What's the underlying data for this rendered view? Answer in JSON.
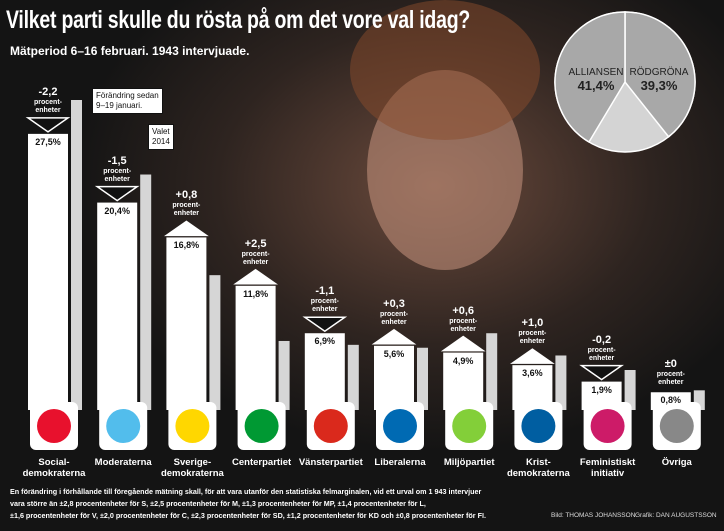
{
  "title": "Vilket parti skulle du rösta på om det vore val idag?",
  "subtitle": "Mätperiod 6–16 februari. 1943 intervjuade.",
  "callouts": {
    "change": "Förändring sedan\n9–19 januari."
  },
  "footnote": [
    "En förändring i förhållande till föregående mätning skall, för att vara utanför den statistiska felmarginalen, vid ett urval om 1 943 intervjuer",
    "vara större än ±2,8 procentenheter för S, ±2,5 procentenheter för M, ±1,3 procentenheter för MP, ±1,4 procentenheter för L,",
    "±1,6 procentenheter för V, ±2,0 procentenheter för C, ±2,3 procentenheter för SD, ±1,2 procentenheter för KD och ±0,8 procentenheter för FI."
  ],
  "credits": {
    "photo": "Bild: THOMAS JOHANSSON",
    "graphic": "Grafik: DAN AUGUSTSSON"
  },
  "chart_data": [
    {
      "type": "bar",
      "categories": [
        "Social-\ndemokraterna",
        "Moderaterna",
        "Sverige-\ndemokraterna",
        "Centerpartiet",
        "Vänsterpartiet",
        "Liberalerna",
        "Miljöpartiet",
        "Krist-\ndemokraterna",
        "Feministiskt\ninitiativ",
        "Övriga"
      ],
      "values": [
        27.5,
        20.4,
        16.8,
        11.8,
        6.9,
        5.6,
        4.9,
        3.6,
        1.9,
        0.8
      ],
      "value_labels": [
        "27,5%",
        "20,4%",
        "16,8%",
        "11,8%",
        "6,9%",
        "5,6%",
        "4,9%",
        "3,6%",
        "1,9%",
        "0,8%"
      ],
      "color": "#ffffff",
      "changes": {
        "values": [
          -2.2,
          -1.5,
          0.8,
          2.5,
          -1.1,
          0.3,
          0.6,
          1.0,
          -0.2,
          0
        ],
        "value_labels": [
          "-2,2",
          "-1,5",
          "+0,8",
          "+2,5",
          "-1,1",
          "+0,3",
          "+0,6",
          "+1,0",
          "-0,2",
          "±0"
        ],
        "unit": "procent-\nenheter"
      },
      "reference_series": {
        "name": "Valet\n2014",
        "color": "#d6d6d6",
        "values": [
          31.0,
          23.3,
          12.9,
          6.1,
          5.7,
          5.4,
          6.9,
          4.6,
          3.1,
          1.0
        ]
      },
      "logo_colors": [
        "#e8112d",
        "#52bdec",
        "#ffd700",
        "#009933",
        "#da291c",
        "#006ab3",
        "#83cf39",
        "#005ea1",
        "#cd1b68",
        "#888888"
      ]
    },
    {
      "type": "pie",
      "categories": [
        "ALLIANSEN",
        "RÖDGRÖNA"
      ],
      "values": [
        41.4,
        39.3
      ],
      "value_labels": [
        "41,4%",
        "39,3%"
      ],
      "colors": [
        "#a8a8a8",
        "#a8a8a8"
      ]
    }
  ]
}
